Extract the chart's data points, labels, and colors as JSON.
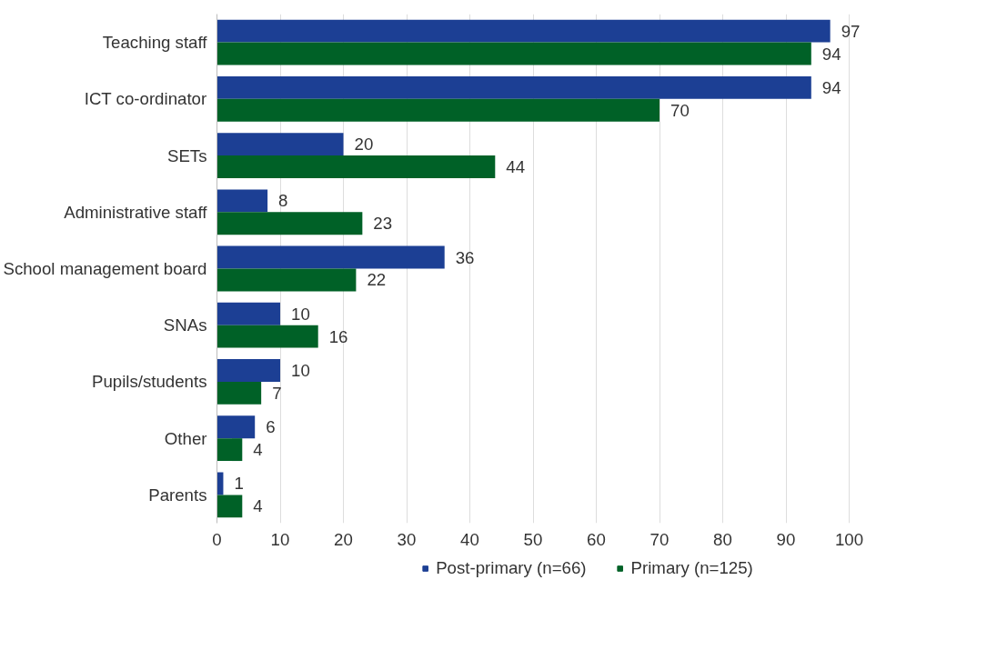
{
  "chart_data": {
    "type": "bar",
    "orientation": "horizontal",
    "categories": [
      "Teaching staff",
      "ICT co-ordinator",
      "SETs",
      "Administrative staff",
      "School management board",
      "SNAs",
      "Pupils/students",
      "Other",
      "Parents"
    ],
    "series": [
      {
        "name": "Post-primary (n=66)",
        "color": "#1c3f94",
        "values": [
          97,
          94,
          20,
          8,
          36,
          10,
          10,
          6,
          1
        ]
      },
      {
        "name": "Primary (n=125)",
        "color": "#006127",
        "values": [
          94,
          70,
          44,
          23,
          22,
          16,
          7,
          4,
          4
        ]
      }
    ],
    "xlim": [
      0,
      100
    ],
    "xticks": [
      0,
      10,
      20,
      30,
      40,
      50,
      60,
      70,
      80,
      90,
      100
    ],
    "grid": "x",
    "legend": "bottom",
    "data_labels": true
  }
}
